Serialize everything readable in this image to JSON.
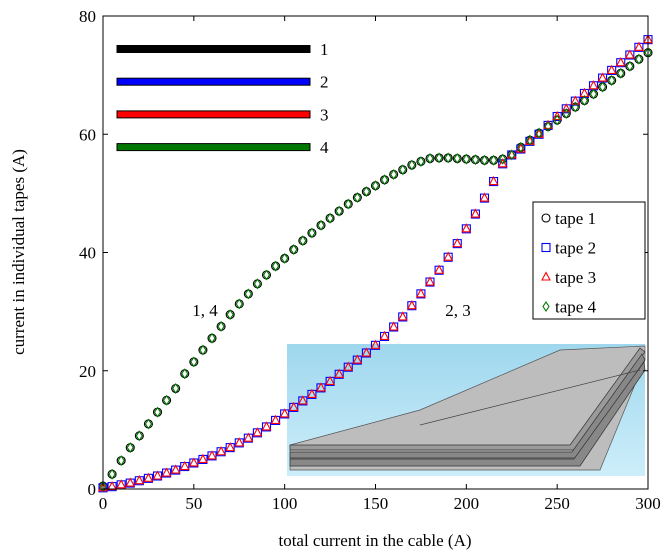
{
  "chart_data": {
    "type": "scatter",
    "xlabel": "total current in the cable (A)",
    "ylabel": "current in individual tapes (A)",
    "xlim": [
      0,
      300
    ],
    "ylim": [
      0,
      80
    ],
    "xticks": [
      0,
      50,
      100,
      150,
      200,
      250,
      300
    ],
    "yticks": [
      0,
      20,
      40,
      60,
      80
    ],
    "legend": "right",
    "x": [
      0,
      5,
      10,
      15,
      20,
      25,
      30,
      35,
      40,
      45,
      50,
      55,
      60,
      65,
      70,
      75,
      80,
      85,
      90,
      95,
      100,
      105,
      110,
      115,
      120,
      125,
      130,
      135,
      140,
      145,
      150,
      155,
      160,
      165,
      170,
      175,
      180,
      185,
      190,
      195,
      200,
      205,
      210,
      215,
      220,
      225,
      230,
      235,
      240,
      245,
      250,
      255,
      260,
      265,
      270,
      275,
      280,
      285,
      290,
      295,
      300
    ],
    "series": [
      {
        "name": "tape 1",
        "color": "#000000",
        "marker": "circle",
        "values": [
          0.5,
          2.5,
          4.8,
          7,
          9,
          11,
          13,
          15,
          17,
          19.5,
          21.5,
          23.5,
          25.5,
          27.5,
          29.5,
          31.3,
          33,
          34.7,
          36.2,
          37.7,
          39,
          40.5,
          42,
          43.3,
          44.6,
          45.8,
          47,
          48.2,
          49.3,
          50.3,
          51.3,
          52.3,
          53.2,
          54,
          54.8,
          55.4,
          55.9,
          56,
          56,
          55.9,
          55.8,
          55.7,
          55.6,
          55.6,
          55.8,
          56.5,
          57.8,
          59,
          60.2,
          61.3,
          62.4,
          63.5,
          64.6,
          65.7,
          66.8,
          68,
          69.1,
          70.3,
          71.5,
          72.7,
          73.8
        ]
      },
      {
        "name": "tape 2",
        "color": "#0000ff",
        "marker": "square",
        "values": [
          0.2,
          0.4,
          0.7,
          1,
          1.4,
          1.8,
          2.2,
          2.7,
          3.2,
          3.8,
          4.4,
          5,
          5.6,
          6.3,
          7,
          7.8,
          8.6,
          9.5,
          10.5,
          11.6,
          12.7,
          13.8,
          14.9,
          16,
          17.1,
          18.2,
          19.4,
          20.6,
          21.8,
          23,
          24.3,
          25.8,
          27.4,
          29.1,
          31,
          33,
          35,
          37,
          39.2,
          41.5,
          44,
          46.5,
          49.2,
          52,
          55,
          56.5,
          57.5,
          58.8,
          60,
          61.5,
          63,
          64.3,
          65.6,
          66.9,
          68.2,
          69.5,
          70.8,
          72.1,
          73.4,
          74.7,
          76
        ]
      },
      {
        "name": "tape 3",
        "color": "#ff0000",
        "marker": "triangle",
        "values": [
          0.2,
          0.4,
          0.7,
          1,
          1.4,
          1.8,
          2.2,
          2.7,
          3.2,
          3.8,
          4.4,
          5,
          5.6,
          6.3,
          7,
          7.8,
          8.6,
          9.5,
          10.5,
          11.6,
          12.7,
          13.8,
          14.9,
          16,
          17.1,
          18.2,
          19.4,
          20.6,
          21.8,
          23,
          24.3,
          25.8,
          27.4,
          29.1,
          31,
          33,
          35,
          37,
          39.2,
          41.5,
          44,
          46.5,
          49.2,
          52,
          55,
          56.5,
          57.5,
          58.8,
          60,
          61.5,
          63,
          64.3,
          65.6,
          66.9,
          68.2,
          69.5,
          70.8,
          72.1,
          73.4,
          74.7,
          76
        ]
      },
      {
        "name": "tape 4",
        "color": "#007700",
        "marker": "diamond",
        "values": [
          0.5,
          2.5,
          4.8,
          7,
          9,
          11,
          13,
          15,
          17,
          19.5,
          21.5,
          23.5,
          25.5,
          27.5,
          29.5,
          31.3,
          33,
          34.7,
          36.2,
          37.7,
          39,
          40.5,
          42,
          43.3,
          44.6,
          45.8,
          47,
          48.2,
          49.3,
          50.3,
          51.3,
          52.3,
          53.2,
          54,
          54.8,
          55.4,
          55.9,
          56,
          56,
          55.9,
          55.8,
          55.7,
          55.6,
          55.6,
          55.8,
          56.5,
          57.8,
          59,
          60.2,
          61.3,
          62.4,
          63.5,
          64.6,
          65.7,
          66.8,
          68,
          69.1,
          70.3,
          71.5,
          72.7,
          73.8
        ]
      }
    ],
    "key_lines": [
      {
        "label": "1",
        "color": "#000000"
      },
      {
        "label": "2",
        "color": "#0000ff"
      },
      {
        "label": "3",
        "color": "#ff0000"
      },
      {
        "label": "4",
        "color": "#007700"
      }
    ],
    "annotations": [
      "1, 4",
      "2, 3"
    ]
  }
}
